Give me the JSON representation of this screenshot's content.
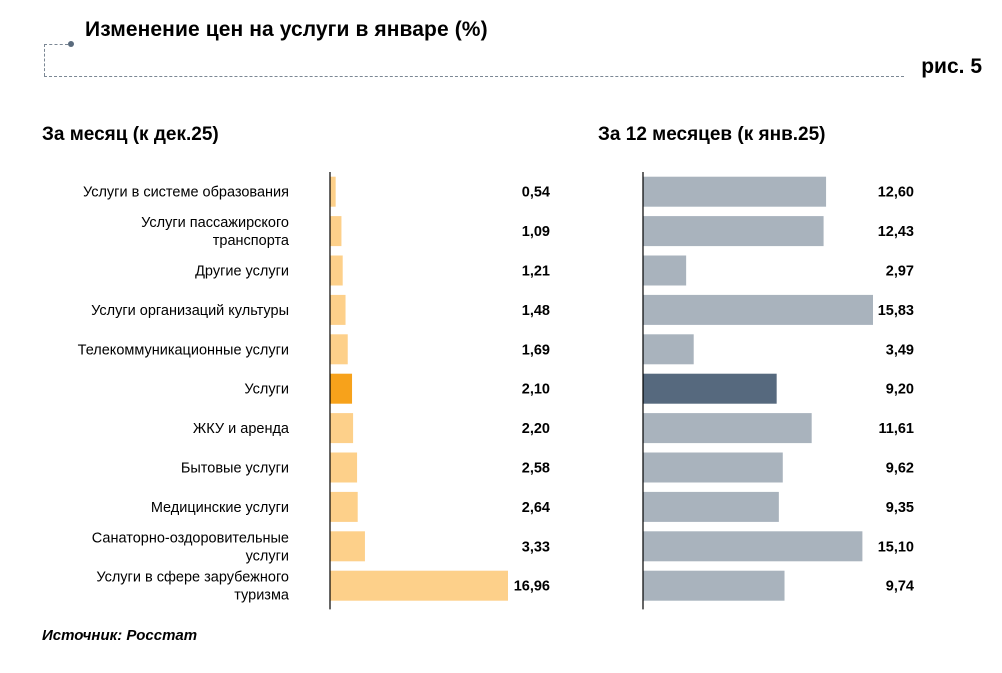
{
  "title": "Изменение цен на услуги в январе (%)",
  "figure_label": "рис. 5",
  "source": "Источник: Росстат",
  "colors": {
    "left_bar": "#fdd08a",
    "left_highlight": "#f7a21b",
    "right_bar": "#a9b3bd",
    "right_highlight": "#56697e",
    "axis": "#000000"
  },
  "chart_data": [
    {
      "type": "bar",
      "orientation": "horizontal",
      "title": "За месяц (к дек.25)",
      "categories": [
        [
          "Услуги в системе образования"
        ],
        [
          "Услуги пассажирского",
          "транспорта"
        ],
        [
          "Другие услуги"
        ],
        [
          "Услуги организаций культуры"
        ],
        [
          "Телекоммуникационные услуги"
        ],
        [
          "Услуги"
        ],
        [
          "ЖКУ и аренда"
        ],
        [
          "Бытовые услуги"
        ],
        [
          "Медицинские услуги"
        ],
        [
          "Санаторно-оздоровительные",
          "услуги"
        ],
        [
          "Услуги в сфере зарубежного",
          "туризма"
        ]
      ],
      "values": [
        0.54,
        1.09,
        1.21,
        1.48,
        1.69,
        2.1,
        2.2,
        2.58,
        2.64,
        3.33,
        16.96
      ],
      "labels": [
        "0,54",
        "1,09",
        "1,21",
        "1,48",
        "1,69",
        "2,10",
        "2,20",
        "2,58",
        "2,64",
        "3,33",
        "16,96"
      ],
      "highlight_index": 5,
      "xlim": [
        0,
        17
      ]
    },
    {
      "type": "bar",
      "orientation": "horizontal",
      "title": "За 12 месяцев (к янв.25)",
      "values": [
        12.6,
        12.43,
        2.97,
        15.83,
        3.49,
        9.2,
        11.61,
        9.62,
        9.35,
        15.1,
        9.74
      ],
      "labels": [
        "12,60",
        "12,43",
        "2,97",
        "15,83",
        "3,49",
        "9,20",
        "11,61",
        "9,62",
        "9,35",
        "15,10",
        "9,74"
      ],
      "highlight_index": 5,
      "xlim": [
        0,
        16
      ]
    }
  ]
}
